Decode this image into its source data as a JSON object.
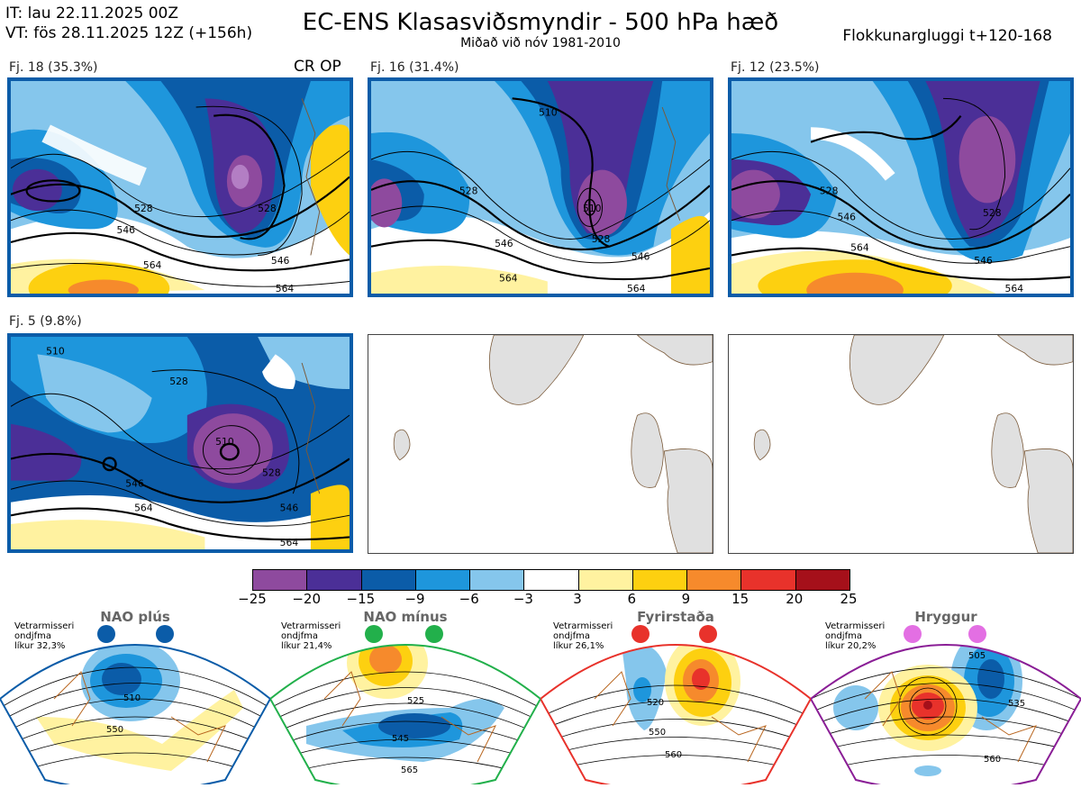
{
  "header": {
    "it_line": "IT: lau 22.11.2025 00Z",
    "vt_line": "VT: fös 28.11.2025 12Z  (+156h)",
    "title": "EC-ENS Klasasviðsmyndir - 500 hPa hæð",
    "subtitle": "Miðað við nóv 1981-2010",
    "window": "Flokkunargluggi t+120-168"
  },
  "panels": [
    {
      "label": "Fj. 18 (35.3%)",
      "extra": "CR OP",
      "contours": [
        "528",
        "546",
        "564",
        "528",
        "546",
        "564"
      ]
    },
    {
      "label": "Fj. 16 (31.4%)",
      "contours": [
        "510",
        "528",
        "546",
        "564",
        "510",
        "528",
        "546",
        "564"
      ]
    },
    {
      "label": "Fj. 12 (23.5%)",
      "contours": [
        "528",
        "546",
        "564",
        "528",
        "546",
        "564"
      ]
    },
    {
      "label": "Fj. 5 (9.8%)",
      "contours": [
        "510",
        "528",
        "546",
        "564",
        "510",
        "528",
        "546",
        "564"
      ]
    }
  ],
  "colorbar": {
    "ticks": [
      "−25",
      "−20",
      "−15",
      "−9",
      "−6",
      "−3",
      "3",
      "6",
      "9",
      "15",
      "20",
      "25"
    ],
    "colors": [
      "#8e4a9e",
      "#4b2f97",
      "#0b5ca8",
      "#1e96dc",
      "#85c6ec",
      "#ffffff",
      "#fff2a0",
      "#fdd010",
      "#f68a2c",
      "#e8322b",
      "#a5101a"
    ]
  },
  "regimes": [
    {
      "title": "NAO plús",
      "stat1": "Vetrarmisseri",
      "stat2": "ondjfma",
      "stat3": "líkur 32,3%",
      "dot_color": "#0b5ca8",
      "border_color": "#0b5ca8",
      "contours": [
        "510",
        "550"
      ]
    },
    {
      "title": "NAO mínus",
      "stat1": "Vetrarmisseri",
      "stat2": "ondjfma",
      "stat3": "líkur 21,4%",
      "dot_color": "#22b04b",
      "border_color": "#22b04b",
      "contours": [
        "525",
        "545",
        "565"
      ]
    },
    {
      "title": "Fyrirstaða",
      "stat1": "Vetrarmisseri",
      "stat2": "ondjfma",
      "stat3": "líkur 26,1%",
      "dot_color": "#e8322b",
      "border_color": "#e8322b",
      "contours": [
        "520",
        "550",
        "560"
      ]
    },
    {
      "title": "Hryggur",
      "stat1": "Vetrarmisseri",
      "stat2": "ondjfma",
      "stat3": "líkur 20,2%",
      "dot_color": "#e36fe3",
      "border_color": "#8a1e96",
      "contours": [
        "505",
        "535",
        "560"
      ]
    }
  ]
}
